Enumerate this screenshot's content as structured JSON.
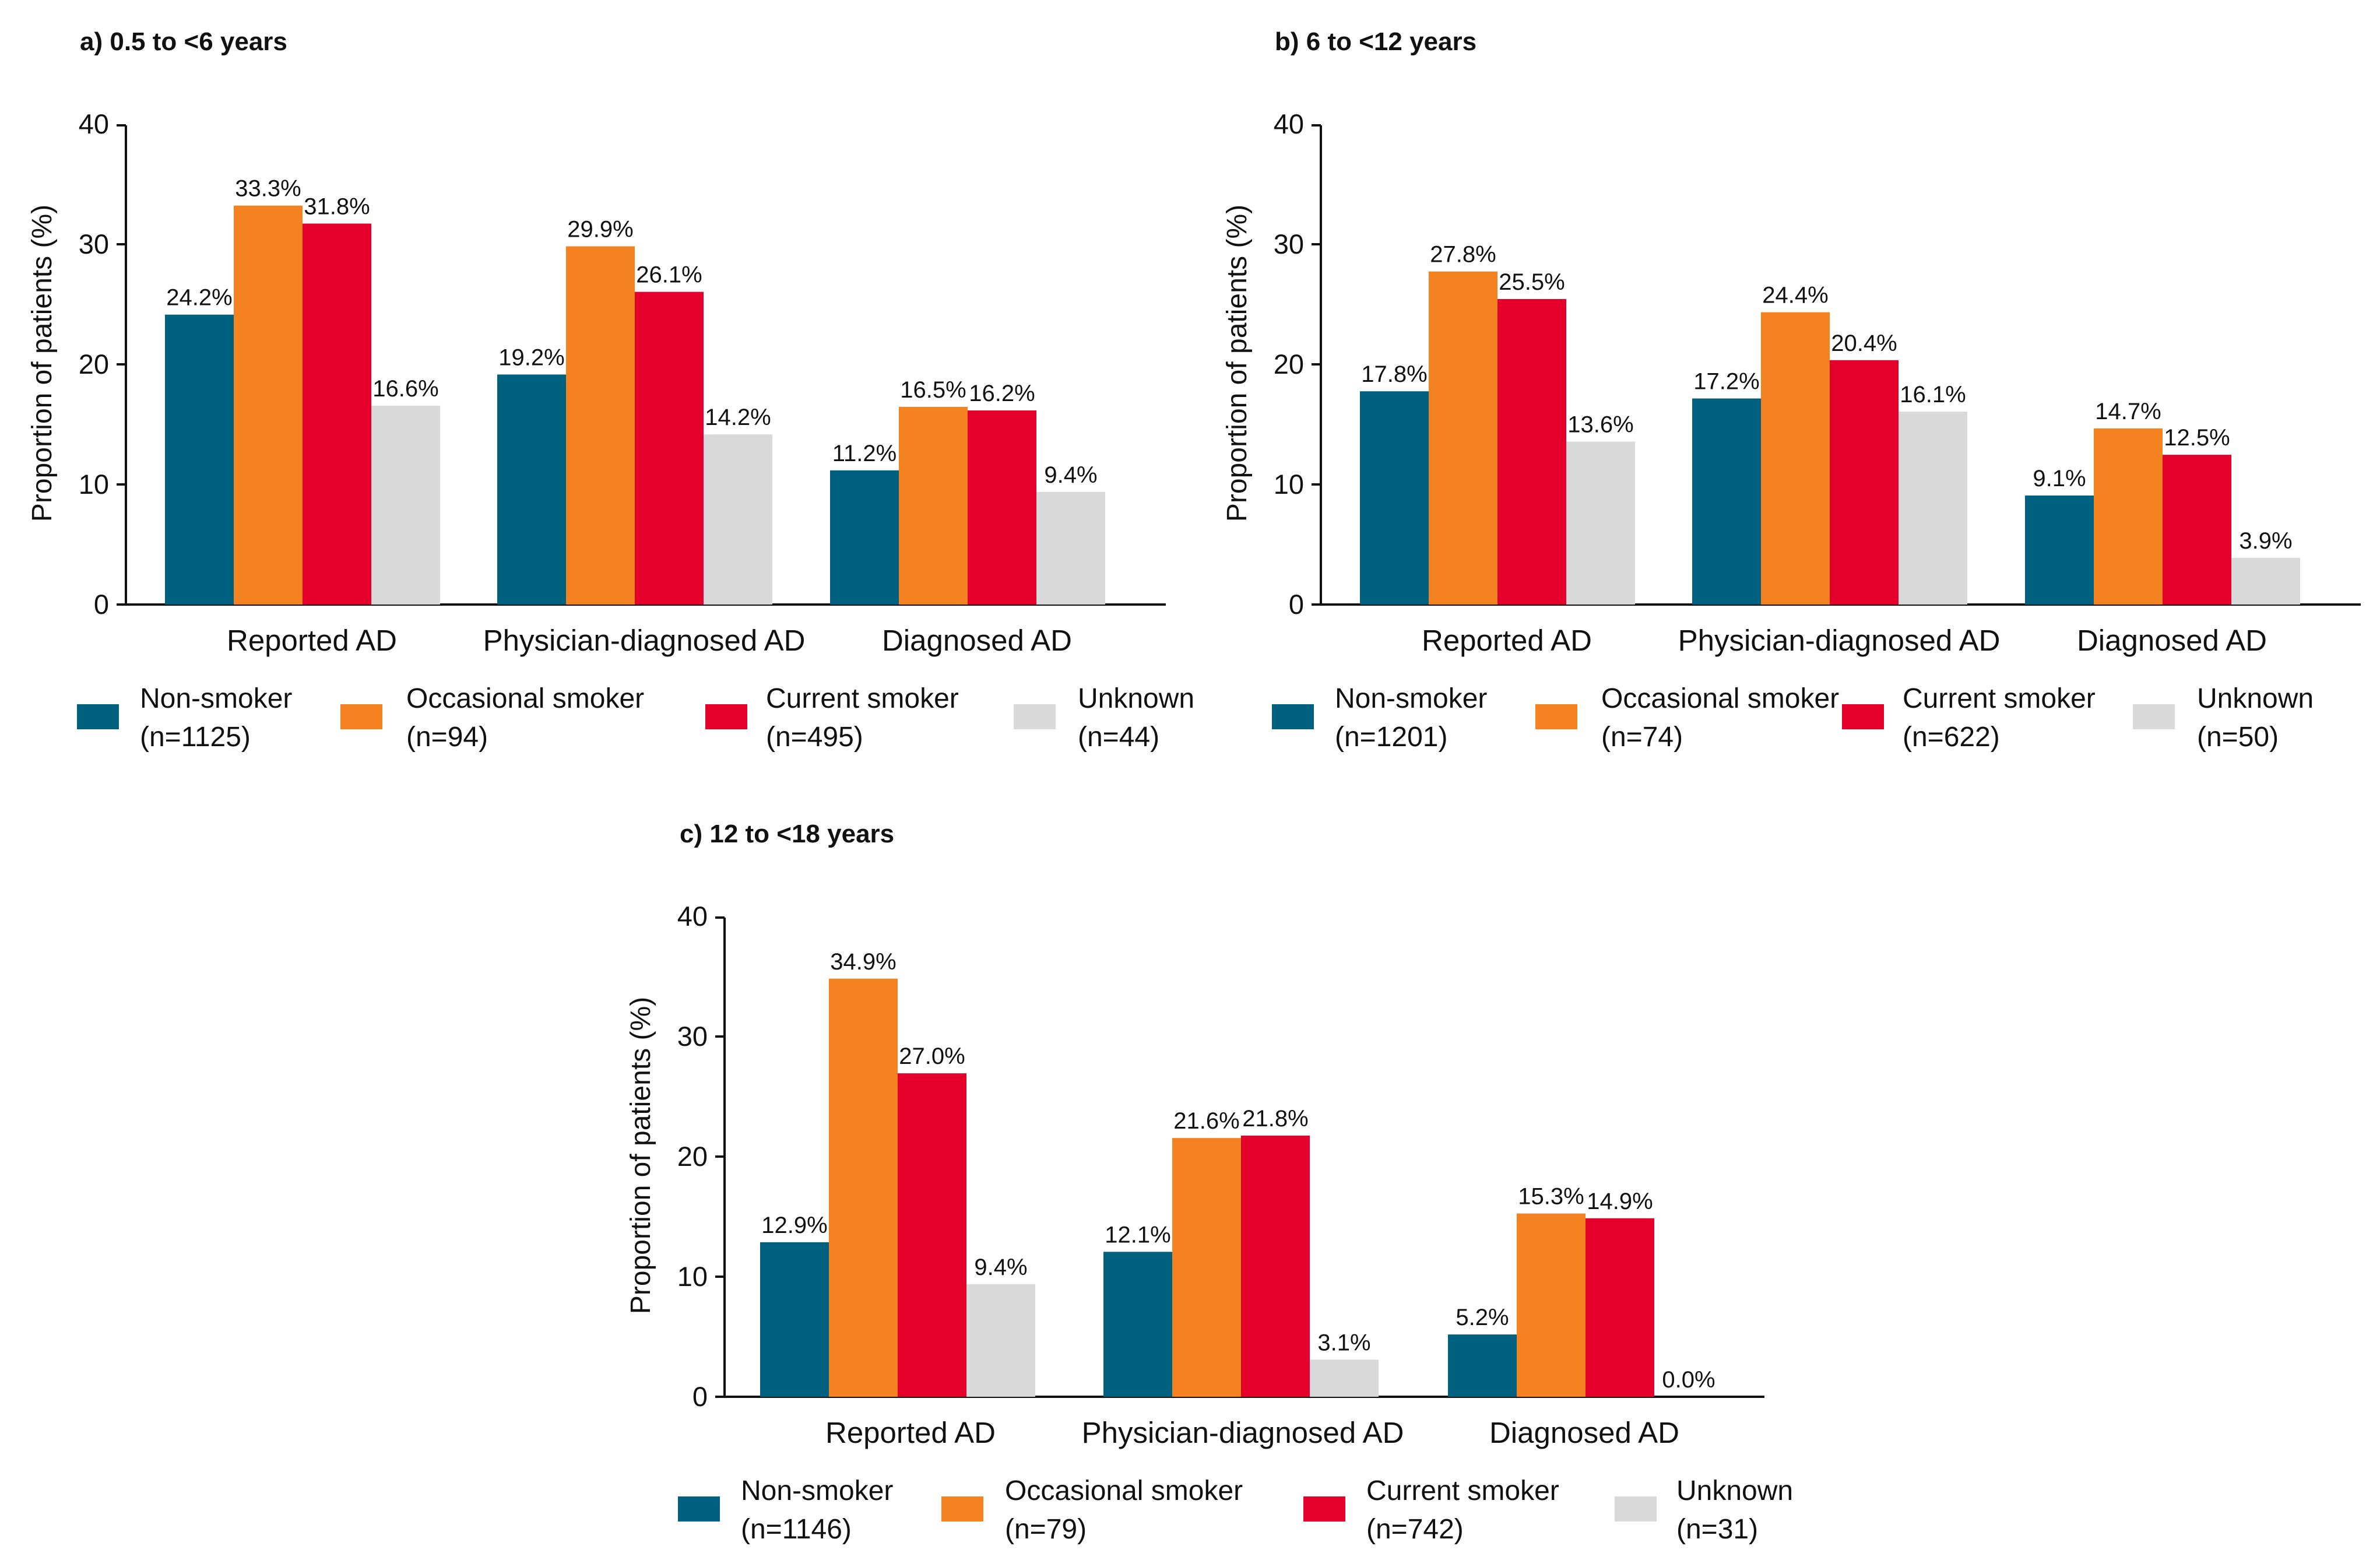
{
  "figure": {
    "value_suffix": "%",
    "legend_items": [
      {
        "name": "Non-smoker",
        "color": "#00607f"
      },
      {
        "name": "Occasional smoker",
        "color": "#f58220"
      },
      {
        "name": "Current smoker",
        "color": "#e4002b"
      },
      {
        "name": "Unknown",
        "color": "#d9d9d9"
      }
    ]
  },
  "chart_data": [
    {
      "type": "bar",
      "title": "a) 0.5 to <6 years",
      "xlabel": "",
      "ylabel": "Proportion of patients (%)",
      "ylim": [
        0,
        40
      ],
      "yticks": [
        0,
        10,
        20,
        30,
        40
      ],
      "categories": [
        "Reported AD",
        "Physician-diagnosed AD",
        "Diagnosed AD"
      ],
      "series": [
        {
          "name": "Non-smoker",
          "n": "(n=1125)",
          "color": "#00607f",
          "values": [
            24.2,
            19.2,
            11.2
          ]
        },
        {
          "name": "Occasional smoker",
          "n": "(n=94)",
          "color": "#f58220",
          "values": [
            33.3,
            29.9,
            16.5
          ]
        },
        {
          "name": "Current smoker",
          "n": "(n=495)",
          "color": "#e4002b",
          "values": [
            31.8,
            26.1,
            16.2
          ]
        },
        {
          "name": "Unknown",
          "n": "(n=44)",
          "color": "#d9d9d9",
          "values": [
            16.6,
            14.2,
            9.4
          ]
        }
      ]
    },
    {
      "type": "bar",
      "title": "b) 6 to <12 years",
      "xlabel": "",
      "ylabel": "Proportion of patients (%)",
      "ylim": [
        0,
        40
      ],
      "yticks": [
        0,
        10,
        20,
        30,
        40
      ],
      "categories": [
        "Reported AD",
        "Physician-diagnosed AD",
        "Diagnosed AD"
      ],
      "series": [
        {
          "name": "Non-smoker",
          "n": "(n=1201)",
          "color": "#00607f",
          "values": [
            17.8,
            17.2,
            9.1
          ]
        },
        {
          "name": "Occasional smoker",
          "n": "(n=74)",
          "color": "#f58220",
          "values": [
            27.8,
            24.4,
            14.7
          ]
        },
        {
          "name": "Current smoker",
          "n": "(n=622)",
          "color": "#e4002b",
          "values": [
            25.5,
            20.4,
            12.5
          ]
        },
        {
          "name": "Unknown",
          "n": "(n=50)",
          "color": "#d9d9d9",
          "values": [
            13.6,
            16.1,
            3.9
          ]
        }
      ]
    },
    {
      "type": "bar",
      "title": "c) 12 to <18 years",
      "xlabel": "",
      "ylabel": "Proportion of patients (%)",
      "ylim": [
        0,
        40
      ],
      "yticks": [
        0,
        10,
        20,
        30,
        40
      ],
      "categories": [
        "Reported AD",
        "Physician-diagnosed AD",
        "Diagnosed AD"
      ],
      "series": [
        {
          "name": "Non-smoker",
          "n": "(n=1146)",
          "color": "#00607f",
          "values": [
            12.9,
            12.1,
            5.2
          ]
        },
        {
          "name": "Occasional smoker",
          "n": "(n=79)",
          "color": "#f58220",
          "values": [
            34.9,
            21.6,
            15.3
          ]
        },
        {
          "name": "Current smoker",
          "n": "(n=742)",
          "color": "#e4002b",
          "values": [
            27.0,
            21.8,
            14.9
          ]
        },
        {
          "name": "Unknown",
          "n": "(n=31)",
          "color": "#d9d9d9",
          "values": [
            9.4,
            3.1,
            0.0
          ]
        }
      ]
    }
  ]
}
